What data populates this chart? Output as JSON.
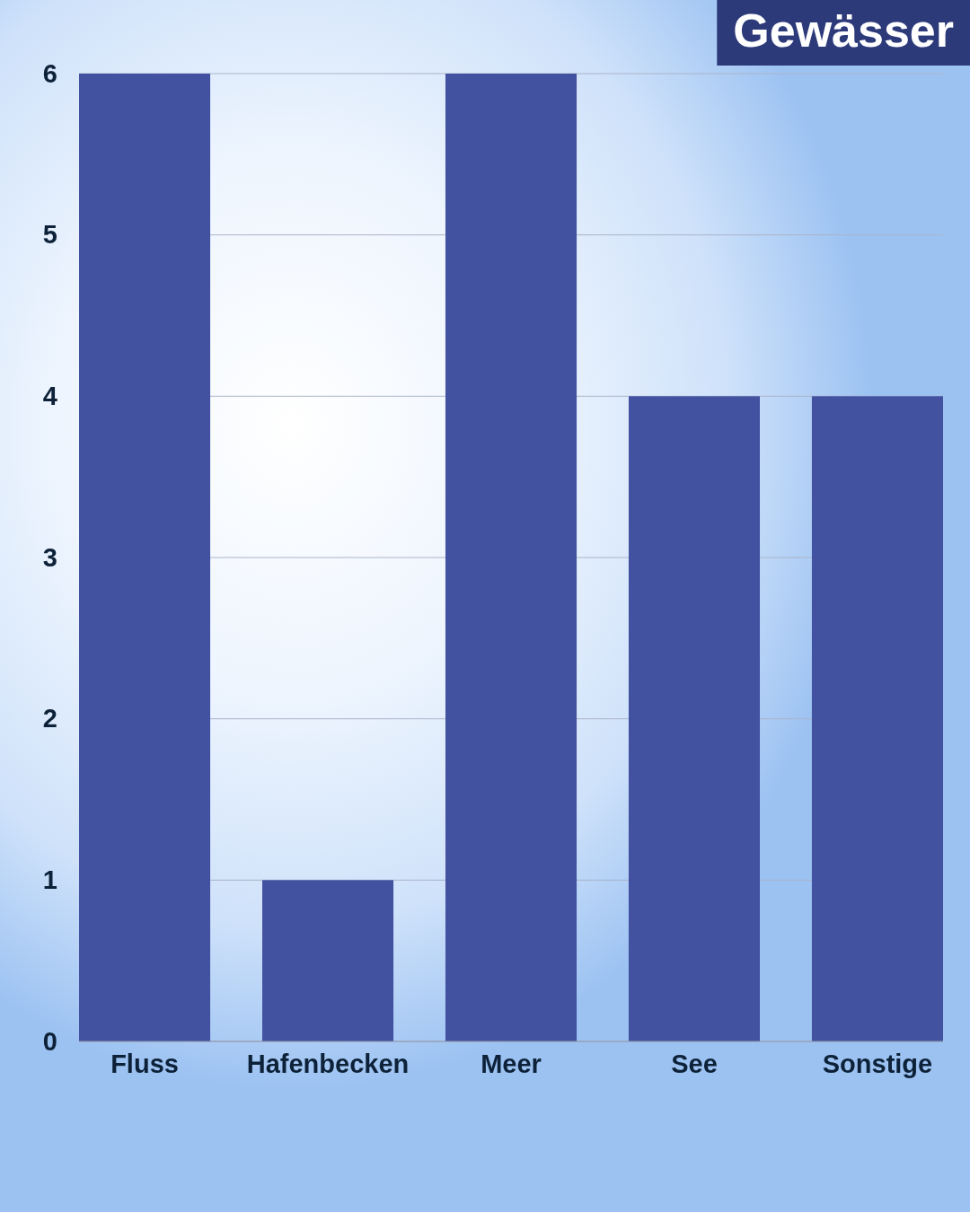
{
  "chart_data": {
    "type": "bar",
    "title": "Gewässer",
    "categories": [
      "Fluss",
      "Hafenbecken",
      "Meer",
      "See",
      "Sonstige"
    ],
    "values": [
      6,
      1,
      6,
      4,
      4
    ],
    "color": "#4251a0",
    "ylim": [
      0,
      6
    ],
    "yticks": [
      0,
      1,
      2,
      3,
      4,
      5,
      6
    ],
    "grid": "y"
  }
}
